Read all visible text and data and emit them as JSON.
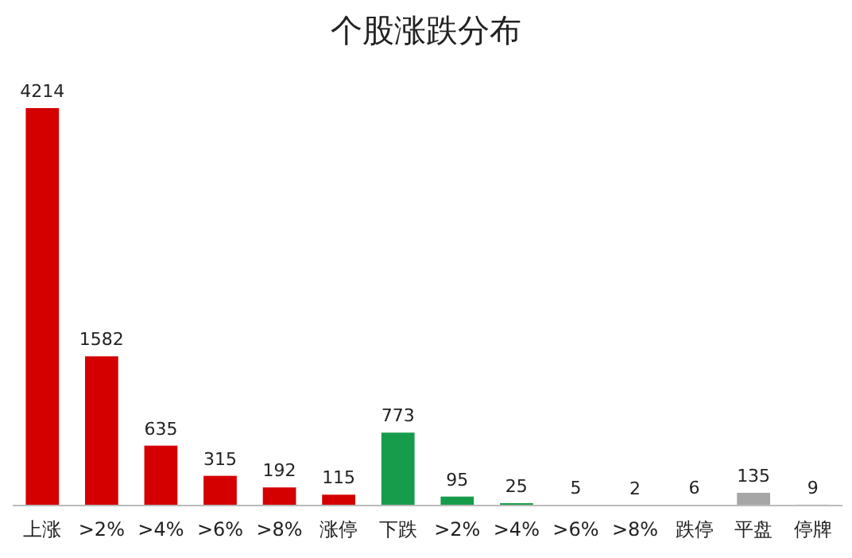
{
  "chart_data": {
    "type": "bar",
    "title": "个股涨跌分布",
    "categories": [
      "上涨",
      ">2%",
      ">4%",
      ">6%",
      ">8%",
      "涨停",
      "下跌",
      ">2%",
      ">4%",
      ">6%",
      ">8%",
      "跌停",
      "平盘",
      "停牌"
    ],
    "values": [
      4214,
      1582,
      635,
      315,
      192,
      115,
      773,
      95,
      25,
      5,
      2,
      6,
      135,
      9
    ],
    "colors": [
      "#d40000",
      "#d40000",
      "#d40000",
      "#d40000",
      "#d40000",
      "#d40000",
      "#179c4c",
      "#179c4c",
      "#179c4c",
      "#179c4c",
      "#179c4c",
      "#179c4c",
      "#a6a6a6",
      "#595959"
    ],
    "data_labels": true
  }
}
